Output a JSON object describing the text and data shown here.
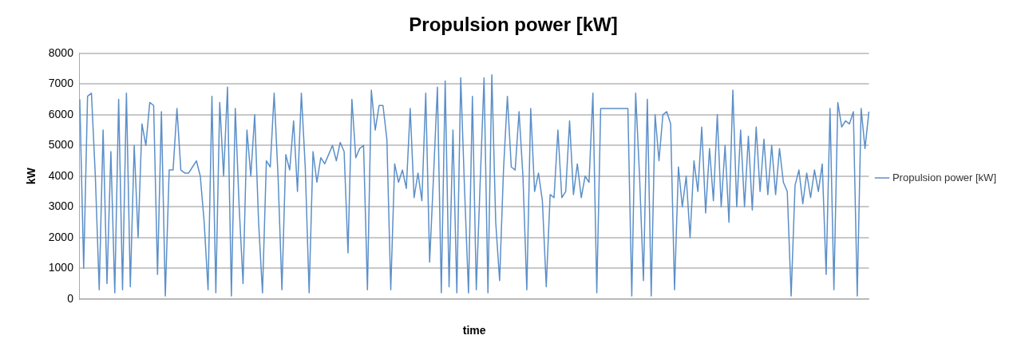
{
  "chart_data": {
    "type": "line",
    "title": "Propulsion power [kW]",
    "xlabel": "time",
    "ylabel": "kW",
    "categories": [
      null,
      null,
      null,
      null,
      null,
      null,
      null,
      null,
      null,
      null,
      null,
      null,
      null,
      null,
      null,
      null,
      null,
      null,
      null,
      null,
      null,
      null,
      null,
      null,
      null,
      null,
      null,
      null,
      null,
      null,
      null,
      null,
      null,
      null,
      null,
      null,
      null,
      null,
      null,
      null,
      null,
      null,
      null,
      null,
      null,
      null,
      null,
      null,
      null,
      null,
      null,
      null,
      null,
      null,
      null,
      null,
      null,
      null,
      null,
      null,
      null,
      null,
      null,
      null,
      null,
      null,
      null,
      null,
      null,
      null,
      null,
      null,
      null,
      null,
      null,
      null,
      null,
      null,
      null,
      null,
      null,
      null,
      null,
      null,
      null,
      null,
      null,
      null,
      null,
      null,
      null,
      null,
      null,
      null,
      null,
      null,
      null,
      null,
      null,
      null,
      null,
      null,
      null,
      null,
      null,
      null,
      null,
      null,
      null,
      null,
      null,
      null,
      null,
      null,
      null,
      null,
      null,
      null,
      null,
      null,
      null,
      null,
      null,
      null,
      null,
      null,
      null,
      null,
      null,
      null,
      null,
      null,
      null,
      null,
      null,
      null,
      null,
      null,
      null,
      null,
      null,
      null,
      null,
      null,
      null,
      null,
      null,
      null,
      null,
      null,
      null,
      null,
      null,
      null,
      null,
      null,
      null,
      null,
      null,
      null,
      null,
      null,
      null,
      null,
      null,
      null,
      null,
      null,
      null,
      null,
      null,
      null,
      null,
      null,
      null,
      null,
      null,
      null,
      null,
      null,
      null,
      null,
      null,
      null,
      null,
      null,
      null,
      null,
      null,
      null,
      null,
      null,
      null,
      null,
      null,
      null,
      null,
      null,
      null,
      null,
      null,
      null,
      null,
      null
    ],
    "series": [
      {
        "name": "Propulsion power [kW]",
        "color": "#5b8fc9",
        "values": [
          6500,
          1000,
          6600,
          6700,
          4000,
          300,
          5500,
          500,
          4800,
          200,
          6500,
          300,
          6700,
          400,
          5000,
          2000,
          5700,
          5000,
          6400,
          6300,
          800,
          6100,
          100,
          4200,
          4200,
          6200,
          4200,
          4100,
          4100,
          4300,
          4500,
          4000,
          2500,
          300,
          6600,
          200,
          6400,
          4000,
          6900,
          100,
          6200,
          3000,
          500,
          5500,
          4000,
          6000,
          2500,
          200,
          4500,
          4300,
          6700,
          4000,
          300,
          4700,
          4200,
          5800,
          3500,
          6700,
          4300,
          200,
          4800,
          3800,
          4600,
          4400,
          4700,
          5000,
          4500,
          5100,
          4800,
          1500,
          6500,
          4600,
          4900,
          5000,
          300,
          6800,
          5500,
          6300,
          6300,
          5200,
          300,
          4400,
          3800,
          4200,
          3600,
          6200,
          3300,
          4100,
          3200,
          6700,
          1200,
          4000,
          6900,
          200,
          7100,
          400,
          5500,
          200,
          7200,
          3500,
          200,
          6600,
          300,
          3800,
          7200,
          200,
          7300,
          2500,
          600,
          4200,
          6600,
          4300,
          4200,
          6100,
          4000,
          300,
          6200,
          3500,
          4100,
          3200,
          400,
          3400,
          3300,
          5500,
          3300,
          3500,
          5800,
          3400,
          4400,
          3300,
          4000,
          3800,
          6700,
          200,
          6200,
          6200,
          6200,
          6200,
          6200,
          6200,
          6200,
          6200,
          100,
          6700,
          4000,
          600,
          6500,
          100,
          6000,
          4500,
          6000,
          6100,
          5700,
          300,
          4300,
          3000,
          4000,
          2000,
          4500,
          3500,
          5600,
          2800,
          4900,
          3200,
          6000,
          3000,
          5000,
          2500,
          6800,
          3000,
          5500,
          3000,
          5300,
          2900,
          5600,
          3500,
          5200,
          3400,
          5000,
          3400,
          4900,
          3800,
          3500,
          100,
          3700,
          4200,
          3100,
          4100,
          3300,
          4200,
          3500,
          4400,
          800,
          6200,
          300,
          6400,
          5600,
          5800,
          5700,
          6100,
          100,
          6200,
          4900,
          6100
        ]
      }
    ],
    "ylim": [
      0,
      8000
    ],
    "yticks": [
      0,
      1000,
      2000,
      3000,
      4000,
      5000,
      6000,
      7000,
      8000
    ],
    "grid": "y",
    "legend": "right",
    "marker": "none",
    "line_style": "solid"
  }
}
